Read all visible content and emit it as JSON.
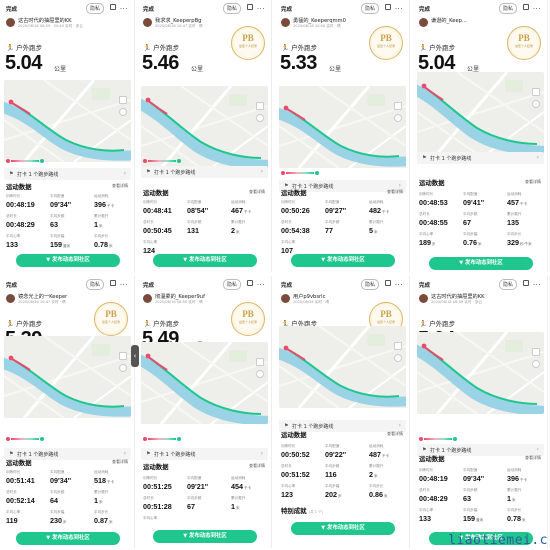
{
  "common": {
    "done": "完成",
    "private": "隐私",
    "more": "...",
    "run_type": "户外跑步",
    "unit_km": "公里",
    "checkin_text": "打卡 1 个跑步路线",
    "section_stats": "运动数据",
    "view_detail": "查看详情",
    "publish": "发布动态到社区",
    "pb": "PB",
    "pb_sub": "最佳个人纪录",
    "colors": {
      "accent": "#1fc68e",
      "gold": "#c9a14c",
      "route": "#1fc68e",
      "river": "#9ad3e6"
    }
  },
  "panels": [
    {
      "id": "p1",
      "user": "这古时代的抽屉里的KK",
      "date": "2020/08/18 08:59 · 50:49  实时 · 多云",
      "distance": "5.04",
      "pb": false,
      "stats": [
        {
          "label": "训练时长",
          "value": "00:48:19",
          "unit": ""
        },
        {
          "label": "平均配速",
          "value": "09'34''",
          "unit": ""
        },
        {
          "label": "运动消耗",
          "value": "396",
          "unit": "千卡"
        },
        {
          "label": "总时长",
          "value": "00:48:29",
          "unit": ""
        },
        {
          "label": "平均步频",
          "value": "63",
          "unit": ""
        },
        {
          "label": "累计爬升",
          "value": "1",
          "unit": "米"
        },
        {
          "label": "平均心率",
          "value": "133",
          "unit": ""
        },
        {
          "label": "平均步幅",
          "value": "159",
          "unit": "厘米"
        },
        {
          "label": "平均步长",
          "value": "0.78",
          "unit": "米"
        }
      ]
    },
    {
      "id": "p2",
      "user": "我求求_KeeperpBg",
      "date": "2020/08/16 10:47  实时 · 晴",
      "distance": "5.46",
      "pb": true,
      "stats": [
        {
          "label": "训练时长",
          "value": "00:48:41",
          "unit": ""
        },
        {
          "label": "平均配速",
          "value": "08'54''",
          "unit": ""
        },
        {
          "label": "运动消耗",
          "value": "467",
          "unit": "千卡"
        },
        {
          "label": "总时长",
          "value": "00:50:45",
          "unit": ""
        },
        {
          "label": "平均步频",
          "value": "131",
          "unit": ""
        },
        {
          "label": "累计爬升",
          "value": "2",
          "unit": "米"
        },
        {
          "label": "平均心率",
          "value": "124",
          "unit": ""
        },
        {
          "label": "",
          "value": "",
          "unit": ""
        },
        {
          "label": "",
          "value": "",
          "unit": ""
        }
      ]
    },
    {
      "id": "p3",
      "user": "勇猛的_Keeperqmm0",
      "date": "2020/08/16 10:00  实时 · 晴",
      "distance": "5.33",
      "pb": true,
      "stats": [
        {
          "label": "训练时长",
          "value": "00:50:26",
          "unit": ""
        },
        {
          "label": "平均配速",
          "value": "09'27''",
          "unit": ""
        },
        {
          "label": "运动消耗",
          "value": "482",
          "unit": "千卡"
        },
        {
          "label": "总时长",
          "value": "00:54:38",
          "unit": ""
        },
        {
          "label": "平均步频",
          "value": "77",
          "unit": ""
        },
        {
          "label": "累计爬升",
          "value": "5",
          "unit": "米"
        },
        {
          "label": "平均心率",
          "value": "107",
          "unit": ""
        },
        {
          "label": "",
          "value": "",
          "unit": ""
        },
        {
          "label": "",
          "value": "",
          "unit": ""
        }
      ]
    },
    {
      "id": "p4",
      "user": "谦逊的_Keep...",
      "date": "",
      "distance": "5.04",
      "pb": true,
      "stats": [
        {
          "label": "训练时长",
          "value": "00:48:53",
          "unit": ""
        },
        {
          "label": "平均配速",
          "value": "09'41''",
          "unit": ""
        },
        {
          "label": "运动消耗",
          "value": "457",
          "unit": "千卡"
        },
        {
          "label": "总时长",
          "value": "00:48:55",
          "unit": ""
        },
        {
          "label": "平均步频",
          "value": "67",
          "unit": ""
        },
        {
          "label": "累计爬升",
          "value": "135",
          "unit": ""
        },
        {
          "label": "平均心率",
          "value": "189",
          "unit": "步"
        },
        {
          "label": "平均步幅",
          "value": "0.76",
          "unit": "米"
        },
        {
          "label": "平均步长",
          "value": "329",
          "unit": "秒/千米"
        }
      ]
    },
    {
      "id": "p5",
      "user": "镜念光上的一Keeper",
      "date": "2020/08/16 10:47  实时 · 晴",
      "distance": "5.39",
      "pb": true,
      "stats": [
        {
          "label": "训练时长",
          "value": "00:51:41",
          "unit": ""
        },
        {
          "label": "平均配速",
          "value": "09'34''",
          "unit": ""
        },
        {
          "label": "运动消耗",
          "value": "518",
          "unit": "千卡"
        },
        {
          "label": "总时长",
          "value": "00:52:14",
          "unit": ""
        },
        {
          "label": "平均步频",
          "value": "64",
          "unit": ""
        },
        {
          "label": "累计爬升",
          "value": "1",
          "unit": "米"
        },
        {
          "label": "平均心率",
          "value": "119",
          "unit": ""
        },
        {
          "label": "平均步幅",
          "value": "230",
          "unit": "步"
        },
        {
          "label": "平均步长",
          "value": "0.87",
          "unit": "米"
        }
      ]
    },
    {
      "id": "p6",
      "user": "彻温柔的_Keeper9uf",
      "date": "2020/08/16 08:50  实时 · 晴",
      "distance": "5.49",
      "pb": true,
      "stats": [
        {
          "label": "训练时长",
          "value": "00:51:25",
          "unit": ""
        },
        {
          "label": "平均配速",
          "value": "09'21''",
          "unit": ""
        },
        {
          "label": "运动消耗",
          "value": "454",
          "unit": "千卡"
        },
        {
          "label": "总时长",
          "value": "00:51:28",
          "unit": ""
        },
        {
          "label": "平均步频",
          "value": "67",
          "unit": ""
        },
        {
          "label": "累计爬升",
          "value": "1",
          "unit": "米"
        },
        {
          "label": "平均心率",
          "value": "",
          "unit": ""
        },
        {
          "label": "",
          "value": "",
          "unit": ""
        },
        {
          "label": "",
          "value": "",
          "unit": ""
        }
      ]
    },
    {
      "id": "p7",
      "user": "用户p9vbsrlc",
      "date": "2020/08/16  实时 · 晴",
      "distance": "5.53",
      "pb": true,
      "stats": [
        {
          "label": "训练时长",
          "value": "00:50:52",
          "unit": ""
        },
        {
          "label": "平均配速",
          "value": "09'22''",
          "unit": ""
        },
        {
          "label": "运动消耗",
          "value": "487",
          "unit": "千卡"
        },
        {
          "label": "总时长",
          "value": "00:51:52",
          "unit": ""
        },
        {
          "label": "平均步频",
          "value": "116",
          "unit": ""
        },
        {
          "label": "累计爬升",
          "value": "2",
          "unit": "米"
        },
        {
          "label": "平均心率",
          "value": "123",
          "unit": ""
        },
        {
          "label": "平均步幅",
          "value": "202",
          "unit": "步"
        },
        {
          "label": "平均步长",
          "value": "0.86",
          "unit": "米"
        }
      ],
      "special": "特别成就",
      "special_sub": "(共 1 个)"
    },
    {
      "id": "p8",
      "user": "这古时代的抽屉里的KK",
      "date": "2020/08/18 08:59  实时 · 多云",
      "distance": "5.04",
      "pb": false,
      "stats": [
        {
          "label": "训练时长",
          "value": "00:48:19",
          "unit": ""
        },
        {
          "label": "平均配速",
          "value": "09'34''",
          "unit": ""
        },
        {
          "label": "运动消耗",
          "value": "396",
          "unit": "千卡"
        },
        {
          "label": "总时长",
          "value": "00:48:29",
          "unit": ""
        },
        {
          "label": "平均步频",
          "value": "63",
          "unit": ""
        },
        {
          "label": "累计爬升",
          "value": "1",
          "unit": "米"
        },
        {
          "label": "平均心率",
          "value": "133",
          "unit": ""
        },
        {
          "label": "平均步幅",
          "value": "159",
          "unit": "厘米"
        },
        {
          "label": "平均步长",
          "value": "0.78",
          "unit": "米"
        }
      ]
    }
  ],
  "watermark": "liaotiemei.c"
}
